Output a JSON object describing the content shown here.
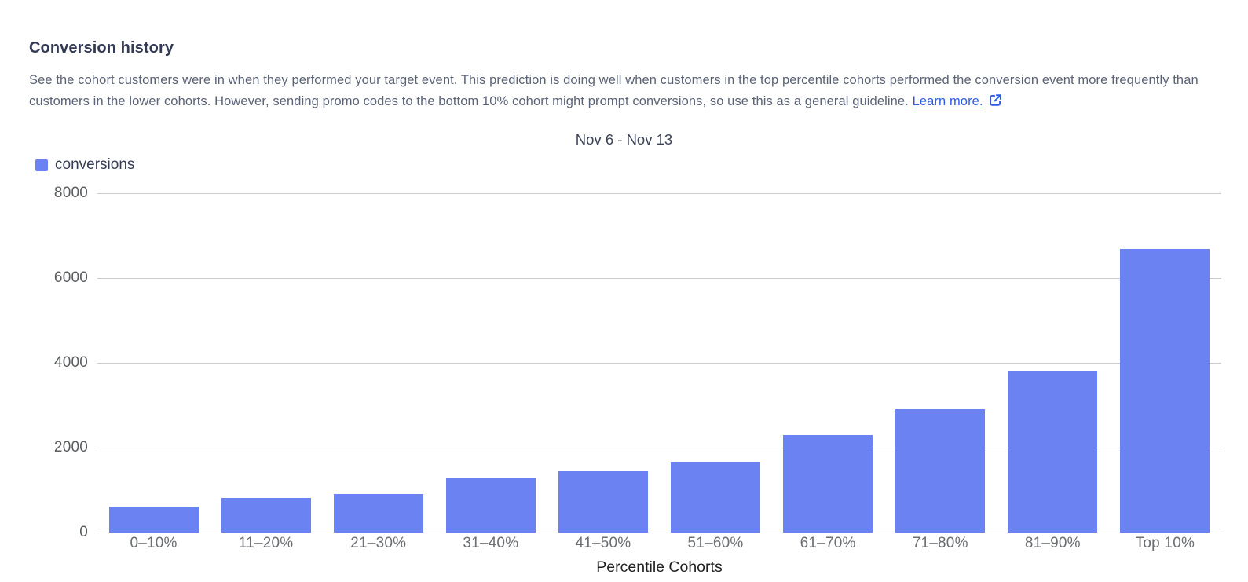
{
  "page": {
    "title": "Conversion history",
    "description": "See the cohort customers were in when they performed your target event. This prediction is doing well when customers in the top percentile cohorts performed the conversion event more frequently than customers in the lower cohorts. However, sending promo codes to the bottom 10% cohort might prompt conversions, so use this as a general guideline.",
    "learn_more_label": "Learn more.",
    "external_link_icon": "open-in-new-window-icon"
  },
  "colors": {
    "bar": "#6b82f2",
    "link": "#2c5ce5",
    "gridline": "#cccccc"
  },
  "chart_data": {
    "type": "bar",
    "title": "Nov 6 - Nov 13",
    "categories": [
      "0–10%",
      "11–20%",
      "21–30%",
      "31–40%",
      "41–50%",
      "51–60%",
      "61–70%",
      "71–80%",
      "81–90%",
      "Top 10%"
    ],
    "series": [
      {
        "name": "conversions",
        "values": [
          620,
          820,
          900,
          1300,
          1450,
          1670,
          2300,
          2900,
          3820,
          6680
        ]
      }
    ],
    "xlabel": "Percentile Cohorts",
    "ylabel": "",
    "ylim": [
      0,
      8000
    ],
    "y_ticks": [
      8000,
      6000,
      4000,
      2000,
      0
    ],
    "grid": "horizontal",
    "legend_position": "top-left"
  }
}
